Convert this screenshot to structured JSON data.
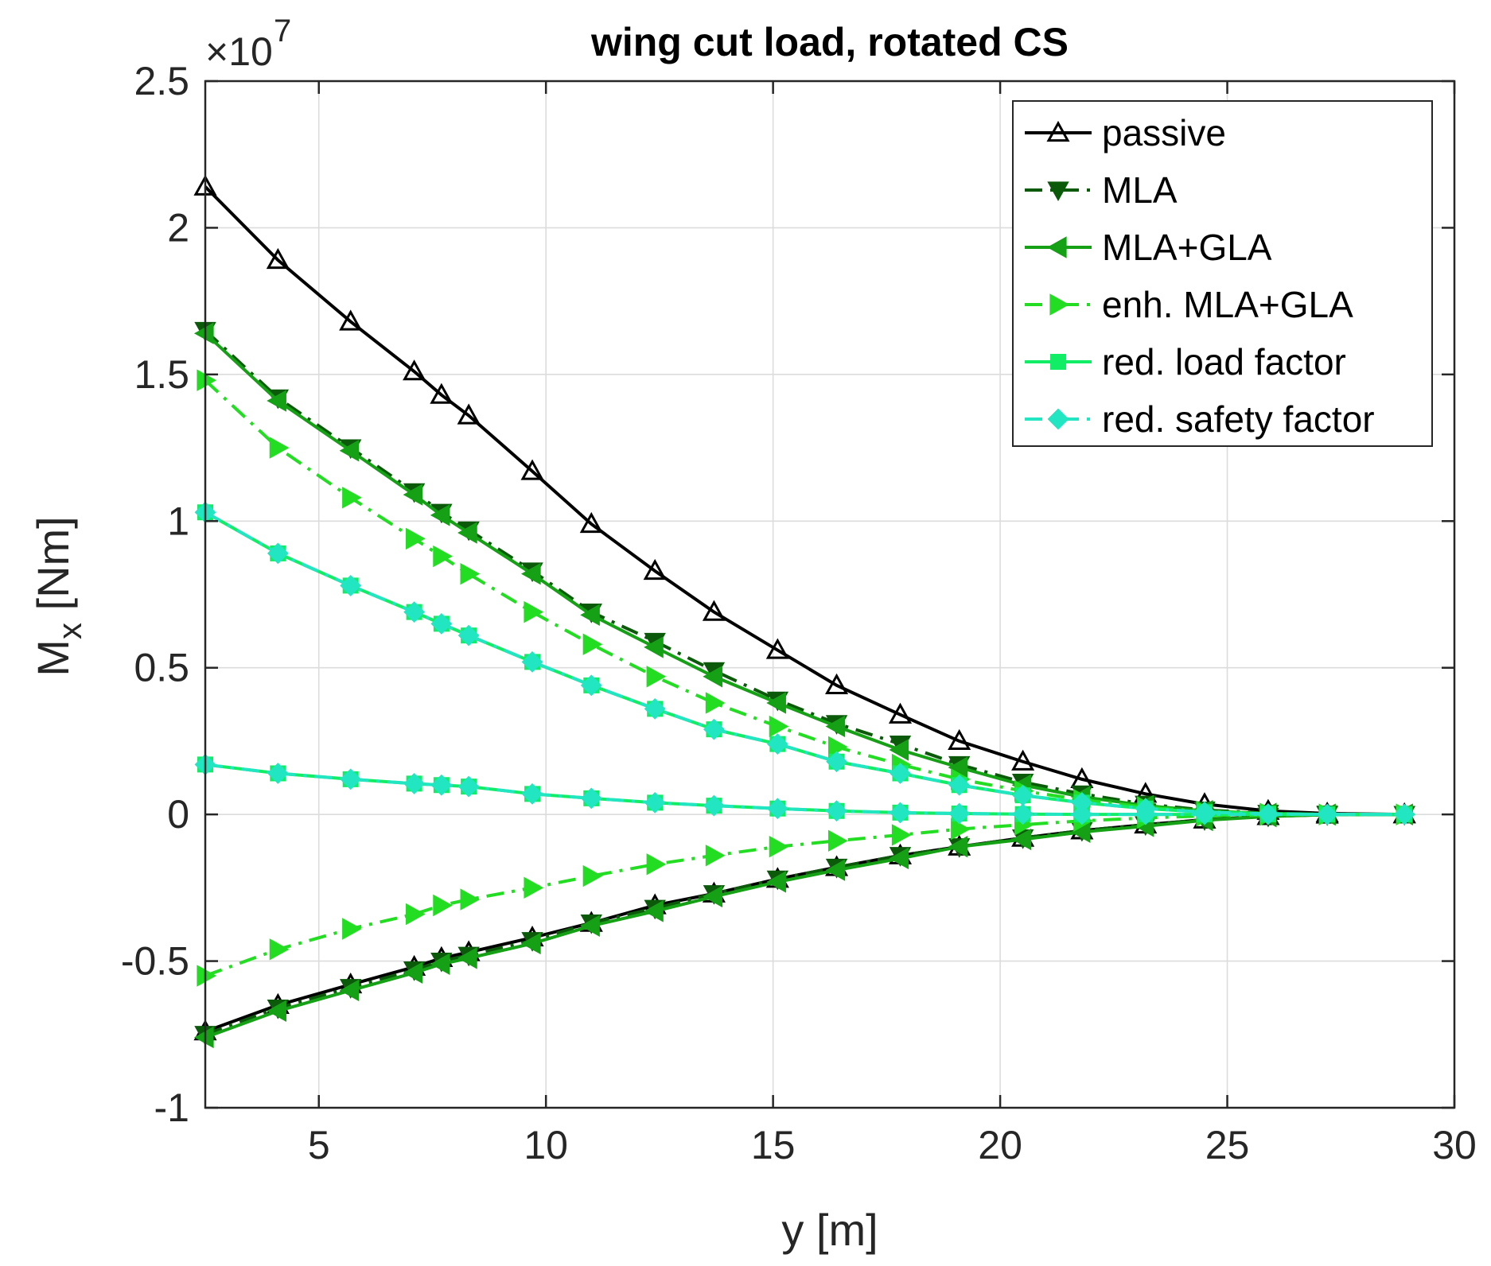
{
  "chart_data": {
    "type": "line",
    "title": "wing cut load, rotated CS",
    "xlabel": "y [m]",
    "ylabel_main": "M",
    "ylabel_sub": "x",
    "ylabel_unit": " [Nm]",
    "y_exponent_prefix": "×10",
    "y_exponent_power": "7",
    "y_multiplier": 10000000,
    "xlim": [
      2.5,
      30
    ],
    "ylim": [
      -1,
      2.5
    ],
    "xticks": [
      5,
      10,
      15,
      20,
      25,
      30
    ],
    "xtick_labels": [
      "5",
      "10",
      "15",
      "20",
      "25",
      "30"
    ],
    "yticks": [
      -1,
      -0.5,
      0,
      0.5,
      1,
      1.5,
      2,
      2.5
    ],
    "ytick_labels": [
      "-1",
      "-0.5",
      "0",
      "0.5",
      "1",
      "1.5",
      "2",
      "2.5"
    ],
    "grid": true,
    "legend_position": "top-right",
    "x": [
      2.5,
      4.1,
      5.7,
      7.1,
      7.7,
      8.3,
      9.7,
      11.0,
      12.4,
      13.7,
      15.1,
      16.4,
      17.8,
      19.1,
      20.5,
      21.8,
      23.2,
      24.5,
      25.9,
      27.2,
      28.9
    ],
    "series": [
      {
        "name": "passive",
        "color": "#000000",
        "dash": "solid",
        "marker": "triangle-up",
        "upper": [
          2.14,
          1.89,
          1.68,
          1.51,
          1.43,
          1.36,
          1.17,
          0.99,
          0.83,
          0.69,
          0.56,
          0.44,
          0.34,
          0.25,
          0.18,
          0.12,
          0.07,
          0.035,
          0.012,
          0.003,
          0.0
        ],
        "lower": [
          -0.74,
          -0.65,
          -0.58,
          -0.52,
          -0.49,
          -0.47,
          -0.42,
          -0.37,
          -0.31,
          -0.27,
          -0.22,
          -0.18,
          -0.14,
          -0.11,
          -0.08,
          -0.055,
          -0.035,
          -0.018,
          -0.006,
          -0.001,
          0.0
        ]
      },
      {
        "name": "MLA",
        "color": "#0a5a0a",
        "dash": "dashdot",
        "marker": "triangle-down",
        "upper": [
          1.65,
          1.42,
          1.25,
          1.1,
          1.03,
          0.97,
          0.83,
          0.69,
          0.59,
          0.49,
          0.39,
          0.31,
          0.24,
          0.17,
          0.11,
          0.07,
          0.035,
          0.015,
          0.004,
          0.001,
          0.0
        ],
        "lower": [
          -0.75,
          -0.66,
          -0.59,
          -0.53,
          -0.5,
          -0.48,
          -0.43,
          -0.37,
          -0.32,
          -0.27,
          -0.22,
          -0.18,
          -0.14,
          -0.11,
          -0.08,
          -0.055,
          -0.035,
          -0.018,
          -0.006,
          -0.001,
          0.0
        ]
      },
      {
        "name": "MLA+GLA",
        "color": "#15a015",
        "dash": "solid",
        "marker": "triangle-left",
        "upper": [
          1.64,
          1.41,
          1.24,
          1.09,
          1.02,
          0.96,
          0.82,
          0.68,
          0.57,
          0.47,
          0.38,
          0.3,
          0.22,
          0.16,
          0.1,
          0.06,
          0.03,
          0.012,
          0.003,
          0.0,
          0.0
        ],
        "lower": [
          -0.76,
          -0.67,
          -0.6,
          -0.54,
          -0.51,
          -0.49,
          -0.44,
          -0.38,
          -0.33,
          -0.28,
          -0.23,
          -0.19,
          -0.15,
          -0.11,
          -0.085,
          -0.06,
          -0.04,
          -0.02,
          -0.007,
          -0.001,
          0.0
        ]
      },
      {
        "name": "enh. MLA+GLA",
        "color": "#22dd22",
        "dash": "dashdot",
        "marker": "triangle-right",
        "upper": [
          1.48,
          1.25,
          1.08,
          0.94,
          0.88,
          0.82,
          0.69,
          0.58,
          0.47,
          0.38,
          0.3,
          0.23,
          0.17,
          0.12,
          0.08,
          0.05,
          0.025,
          0.01,
          0.003,
          0.0,
          0.0
        ],
        "lower": [
          -0.55,
          -0.46,
          -0.39,
          -0.34,
          -0.31,
          -0.29,
          -0.25,
          -0.21,
          -0.17,
          -0.14,
          -0.11,
          -0.09,
          -0.07,
          -0.05,
          -0.035,
          -0.022,
          -0.012,
          -0.005,
          -0.002,
          0.0,
          0.0
        ]
      },
      {
        "name": "red. load factor",
        "color": "#11ee66",
        "dash": "solid",
        "marker": "square",
        "upper": [
          1.03,
          0.89,
          0.78,
          0.69,
          0.65,
          0.61,
          0.52,
          0.44,
          0.36,
          0.29,
          0.24,
          0.18,
          0.14,
          0.1,
          0.065,
          0.04,
          0.02,
          0.008,
          0.002,
          0.0,
          0.0
        ],
        "lower": [
          0.17,
          0.14,
          0.12,
          0.105,
          0.1,
          0.095,
          0.07,
          0.055,
          0.04,
          0.03,
          0.02,
          0.012,
          0.006,
          0.003,
          0.001,
          0.0,
          0.0,
          0.0,
          0.0,
          0.0,
          0.0
        ]
      },
      {
        "name": "red. safety factor",
        "color": "#22e6c2",
        "dash": "dashdot",
        "marker": "diamond",
        "upper": [
          1.03,
          0.89,
          0.78,
          0.69,
          0.65,
          0.61,
          0.52,
          0.44,
          0.36,
          0.29,
          0.24,
          0.18,
          0.14,
          0.1,
          0.065,
          0.04,
          0.02,
          0.008,
          0.002,
          0.0,
          0.0
        ],
        "lower": [
          0.17,
          0.14,
          0.12,
          0.105,
          0.1,
          0.095,
          0.07,
          0.055,
          0.04,
          0.03,
          0.02,
          0.012,
          0.006,
          0.003,
          0.001,
          0.0,
          0.0,
          0.0,
          0.0,
          0.0,
          0.0
        ]
      }
    ]
  }
}
